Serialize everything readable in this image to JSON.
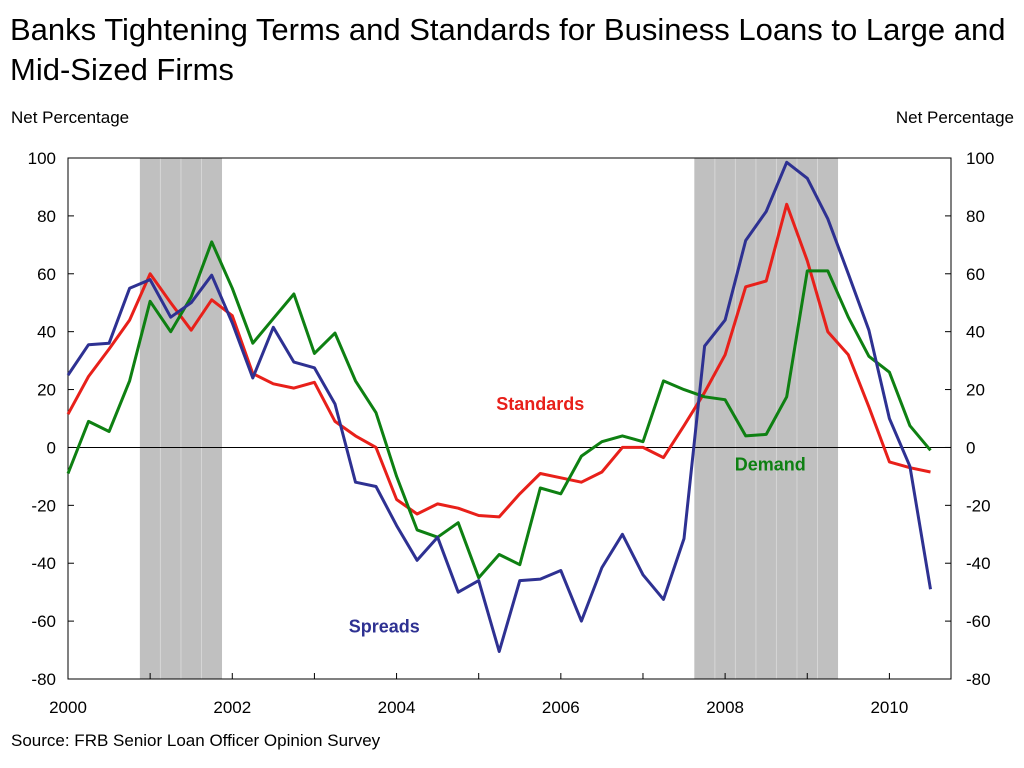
{
  "chart_data": {
    "type": "line",
    "title": "Banks Tightening Terms and Standards for Business Loans to Large and Mid-Sized Firms",
    "ylabel_left": "Net Percentage",
    "ylabel_right": "Net Percentage",
    "source": "Source: FRB Senior Loan Officer Opinion Survey",
    "xlim": [
      2000,
      2010.75
    ],
    "ylim": [
      -80,
      100
    ],
    "yticks": [
      100,
      80,
      60,
      40,
      20,
      0,
      -20,
      -40,
      -60,
      -80
    ],
    "xticks": [
      2000,
      2002,
      2004,
      2006,
      2008,
      2010
    ],
    "grid": false,
    "zero_line": true,
    "recession_shading": [
      [
        2000.875,
        2001.875
      ],
      [
        2007.625,
        2009.375
      ]
    ],
    "x": [
      2000.0,
      2000.25,
      2000.5,
      2000.75,
      2001.0,
      2001.25,
      2001.5,
      2001.75,
      2002.0,
      2002.25,
      2002.5,
      2002.75,
      2003.0,
      2003.25,
      2003.5,
      2003.75,
      2004.0,
      2004.25,
      2004.5,
      2004.75,
      2005.0,
      2005.25,
      2005.5,
      2005.75,
      2006.0,
      2006.25,
      2006.5,
      2006.75,
      2007.0,
      2007.25,
      2007.5,
      2007.75,
      2008.0,
      2008.25,
      2008.5,
      2008.75,
      2009.0,
      2009.25,
      2009.5,
      2009.75,
      2010.0,
      2010.25,
      2010.5
    ],
    "series": [
      {
        "name": "Standards",
        "color": "#e8201a",
        "values": [
          11.5,
          24.5,
          34,
          44,
          60,
          50,
          40.5,
          51,
          45.5,
          25.5,
          22,
          20.5,
          22.5,
          9,
          4,
          0,
          -18,
          -23,
          -19.5,
          -21,
          -23.5,
          -24,
          -16,
          -9,
          -10.5,
          -12,
          -8.5,
          0,
          0,
          -3.5,
          7.5,
          19,
          32,
          55.5,
          57.5,
          84,
          64.5,
          40,
          32,
          14,
          -5,
          -7,
          -8.5
        ]
      },
      {
        "name": "Demand",
        "color": "#0e8012",
        "values": [
          -9,
          9,
          5.5,
          23,
          50.5,
          40,
          52,
          71,
          55,
          36,
          44.5,
          53,
          32.5,
          39.5,
          23,
          12,
          -10,
          -28.5,
          -31,
          -26,
          -45,
          -37,
          -40.5,
          -14,
          -16,
          -3,
          2,
          4,
          2,
          23,
          20,
          17.5,
          16.5,
          4,
          4.5,
          17.5,
          61,
          61,
          45,
          31.5,
          26,
          7.5,
          -1
        ]
      },
      {
        "name": "Spreads",
        "color": "#2e3192",
        "values": [
          25,
          35.5,
          36,
          55,
          58,
          45,
          50,
          59.5,
          43,
          24,
          41.5,
          29.5,
          27.5,
          15,
          -12,
          -13.5,
          -27,
          -39,
          -31,
          -50,
          -46,
          -70.5,
          -46,
          -45.5,
          -42.5,
          -60,
          -41.5,
          -30,
          -44,
          -52.5,
          -31.5,
          35,
          44,
          71.5,
          81.5,
          98.5,
          93,
          79,
          60,
          40.5,
          10,
          -6.5,
          -49
        ]
      }
    ],
    "annotations": [
      {
        "series": "Standards",
        "text": "Standards",
        "x": 2005.75,
        "y": 13,
        "color": "#e8201a"
      },
      {
        "series": "Demand",
        "text": "Demand",
        "x": 2008.55,
        "y": -8,
        "color": "#0e8012"
      },
      {
        "series": "Spreads",
        "text": "Spreads",
        "x": 2003.85,
        "y": -64,
        "color": "#2e3192"
      }
    ]
  }
}
